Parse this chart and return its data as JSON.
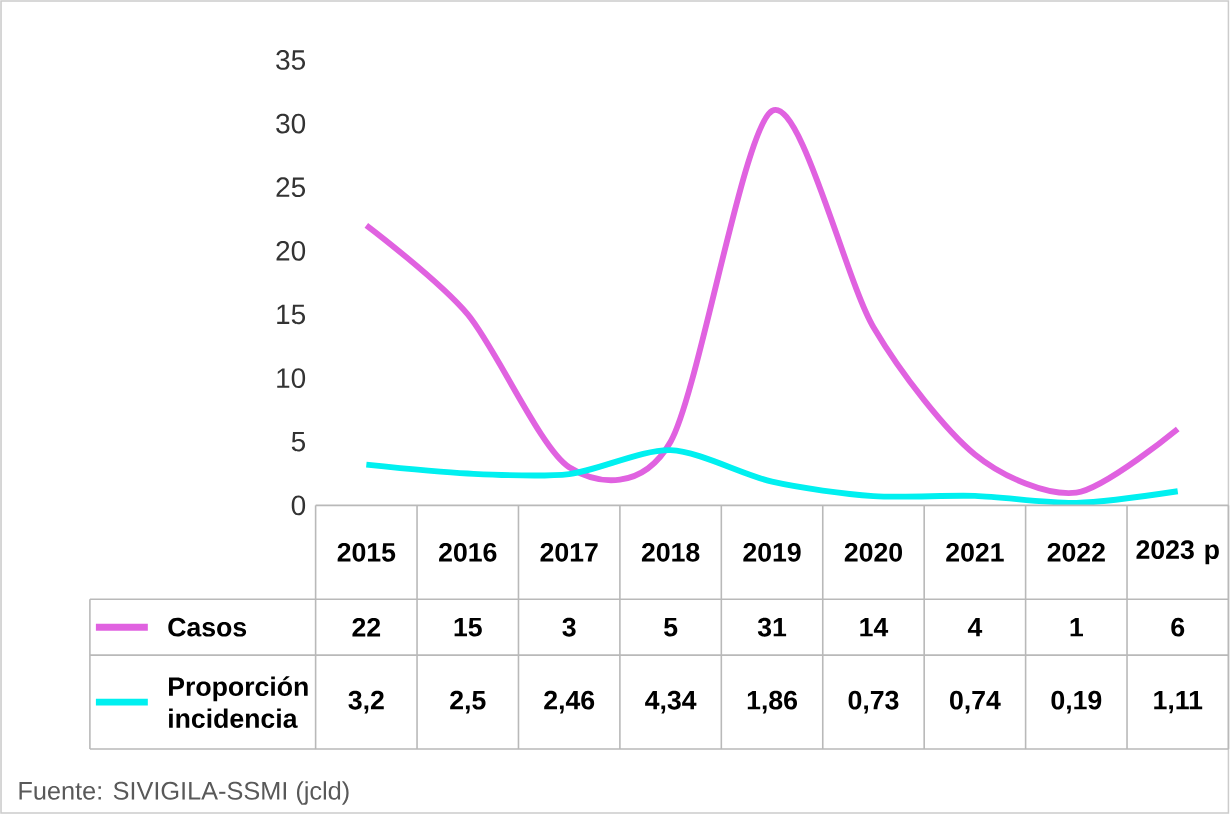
{
  "chart_data": {
    "type": "line",
    "categories": [
      "2015",
      "2016",
      "2017",
      "2018",
      "2019",
      "2020",
      "2021",
      "2022",
      "2023 p"
    ],
    "series": [
      {
        "name": "Casos",
        "color": "#e062e0",
        "values": [
          22,
          15,
          3,
          5,
          31,
          14,
          4,
          1,
          6
        ],
        "value_labels": [
          "22",
          "15",
          "3",
          "5",
          "31",
          "14",
          "4",
          "1",
          "6"
        ]
      },
      {
        "name": "Proporción incidencia",
        "color": "#00f0f0",
        "values": [
          3.2,
          2.5,
          2.46,
          4.34,
          1.86,
          0.73,
          0.74,
          0.19,
          1.11
        ],
        "value_labels": [
          "3,2",
          "2,5",
          "2,46",
          "4,34",
          "1,86",
          "0,73",
          "0,74",
          "0,19",
          "1,11"
        ]
      }
    ],
    "ylim": [
      0,
      35
    ],
    "yticks": [
      0,
      5,
      10,
      15,
      20,
      25,
      30,
      35
    ],
    "legend": "bottom left",
    "annotations": [
      "Fuente: SIVIGILA-SSMI  (jcld)"
    ]
  }
}
